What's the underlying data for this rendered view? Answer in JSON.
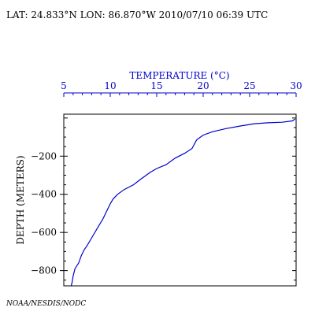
{
  "header": {
    "location_line": "LAT: 24.833°N LON: 86.870°W 2010/07/10 06:39 UTC"
  },
  "footer": {
    "credit": "NOAA/NESDIS/NODC"
  },
  "colors": {
    "temperature_axis": "#0000cc",
    "profile_line": "#0000cc",
    "axes": "#000000"
  },
  "chart_data": {
    "type": "line",
    "title": "",
    "xlabel": "TEMPERATURE (°C)",
    "ylabel": "DEPTH (METERS)",
    "x_axis_position": "top",
    "xlim": [
      5,
      30
    ],
    "ylim": [
      -880,
      20
    ],
    "x_ticks": [
      5,
      10,
      15,
      20,
      25,
      30
    ],
    "x_tick_labels": [
      "5",
      "10",
      "15",
      "20",
      "25",
      "30"
    ],
    "y_ticks": [
      -200,
      -400,
      -600,
      -800
    ],
    "y_tick_labels": [
      "−200",
      "−400",
      "−600",
      "−800"
    ],
    "grid": false,
    "series": [
      {
        "name": "",
        "points": [
          {
            "t": 29.9,
            "d": -5
          },
          {
            "t": 29.6,
            "d": -15
          },
          {
            "t": 28.5,
            "d": -22
          },
          {
            "t": 27.0,
            "d": -25
          },
          {
            "t": 25.5,
            "d": -30
          },
          {
            "t": 24.0,
            "d": -42
          },
          {
            "t": 22.5,
            "d": -55
          },
          {
            "t": 21.0,
            "d": -72
          },
          {
            "t": 20.0,
            "d": -90
          },
          {
            "t": 19.3,
            "d": -115
          },
          {
            "t": 18.8,
            "d": -160
          },
          {
            "t": 18.0,
            "d": -185
          },
          {
            "t": 17.0,
            "d": -210
          },
          {
            "t": 16.0,
            "d": -245
          },
          {
            "t": 15.0,
            "d": -265
          },
          {
            "t": 14.3,
            "d": -285
          },
          {
            "t": 13.3,
            "d": -320
          },
          {
            "t": 12.5,
            "d": -350
          },
          {
            "t": 11.5,
            "d": -375
          },
          {
            "t": 10.8,
            "d": -400
          },
          {
            "t": 10.3,
            "d": -425
          },
          {
            "t": 10.0,
            "d": -450
          },
          {
            "t": 9.6,
            "d": -490
          },
          {
            "t": 9.2,
            "d": -530
          },
          {
            "t": 8.7,
            "d": -570
          },
          {
            "t": 8.1,
            "d": -620
          },
          {
            "t": 7.5,
            "d": -670
          },
          {
            "t": 7.2,
            "d": -690
          },
          {
            "t": 6.9,
            "d": -720
          },
          {
            "t": 6.6,
            "d": -760
          },
          {
            "t": 6.2,
            "d": -790
          },
          {
            "t": 6.0,
            "d": -830
          },
          {
            "t": 5.9,
            "d": -860
          },
          {
            "t": 5.8,
            "d": -880
          }
        ]
      }
    ]
  }
}
